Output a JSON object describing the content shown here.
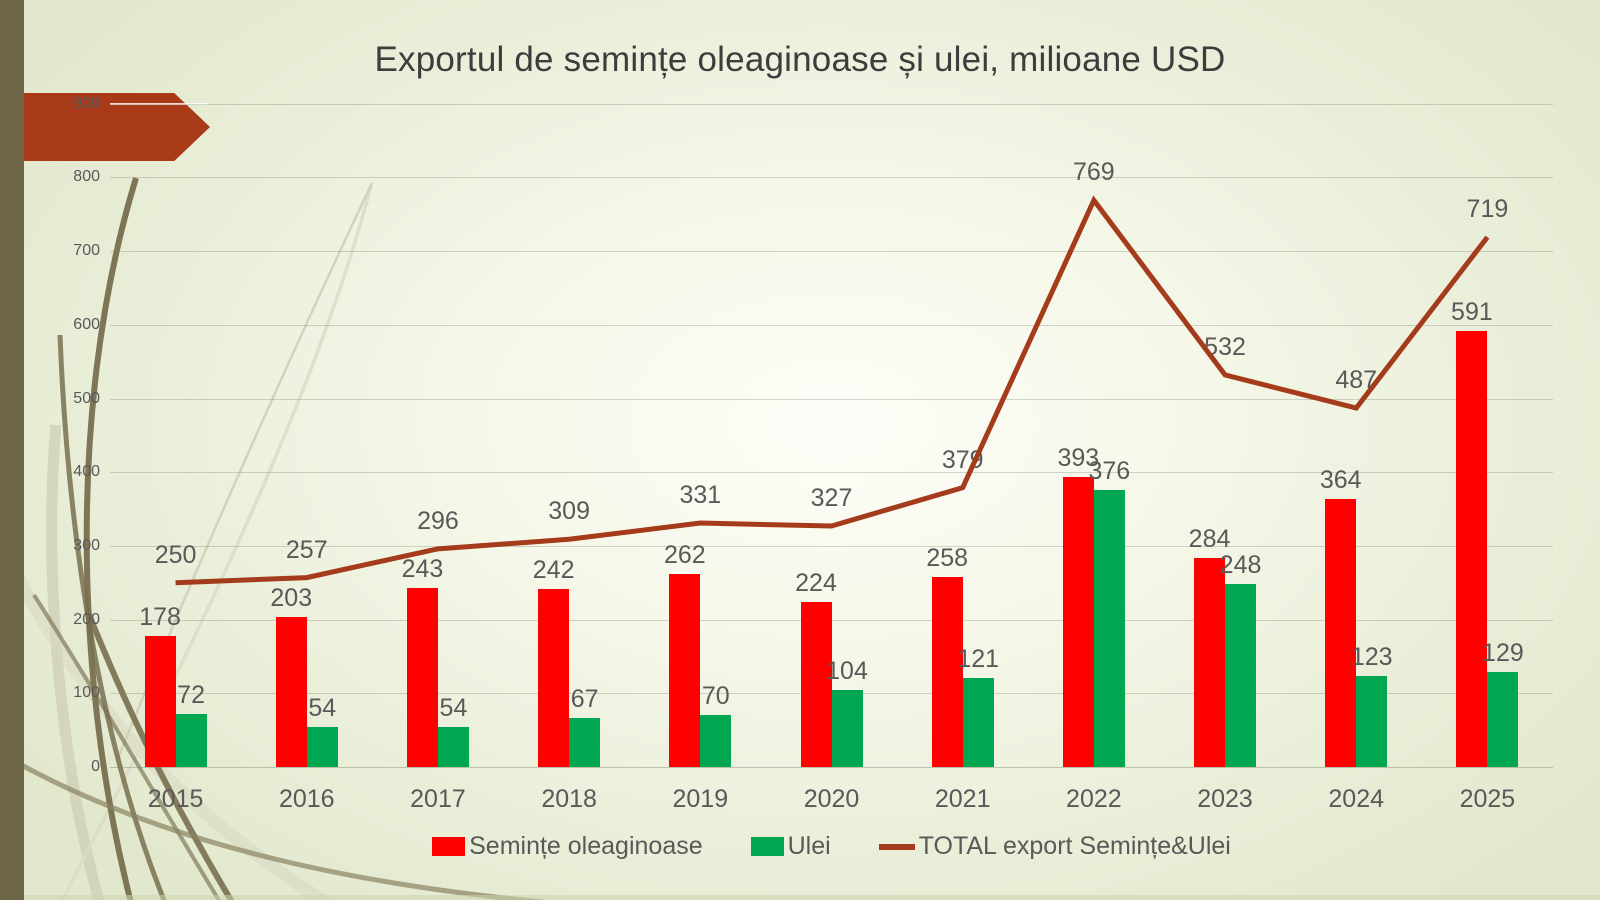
{
  "slide": {
    "title": "Exportul de semințe oleaginoase și ulei, milioane USD",
    "theme": {
      "background": "#e9eed8",
      "left_bar_color": "#6e6849",
      "arrow_color": "#a93a18",
      "title_color": "#3d3d3d",
      "label_color": "#595959",
      "decoration_dark": "#786f4f",
      "decoration_light": "#d6d6c0"
    }
  },
  "chart_data": {
    "type": "bar+line",
    "title": "Exportul de semințe oleaginoase și ulei, milioane USD",
    "categories": [
      "2015",
      "2016",
      "2017",
      "2018",
      "2019",
      "2020",
      "2021",
      "2022",
      "2023",
      "2024",
      "2025"
    ],
    "series": [
      {
        "name": "Semințe oleaginoase",
        "kind": "bar",
        "color": "#ff0000",
        "values": [
          178,
          203,
          243,
          242,
          262,
          224,
          258,
          393,
          284,
          364,
          591
        ]
      },
      {
        "name": "Ulei",
        "kind": "bar",
        "color": "#00a650",
        "values": [
          72,
          54,
          54,
          67,
          70,
          104,
          121,
          376,
          248,
          123,
          129
        ]
      },
      {
        "name": "TOTAL export Semințe&Ulei",
        "kind": "line",
        "color": "#a43b1b",
        "values": [
          250,
          257,
          296,
          309,
          331,
          327,
          379,
          769,
          532,
          487,
          719
        ]
      }
    ],
    "xlabel": "",
    "ylabel": "",
    "ylim": [
      0,
      900
    ],
    "yticks": [
      0,
      100,
      200,
      300,
      400,
      500,
      600,
      700,
      800,
      900
    ],
    "grid": true,
    "data_labels": true,
    "legend_position": "bottom"
  }
}
